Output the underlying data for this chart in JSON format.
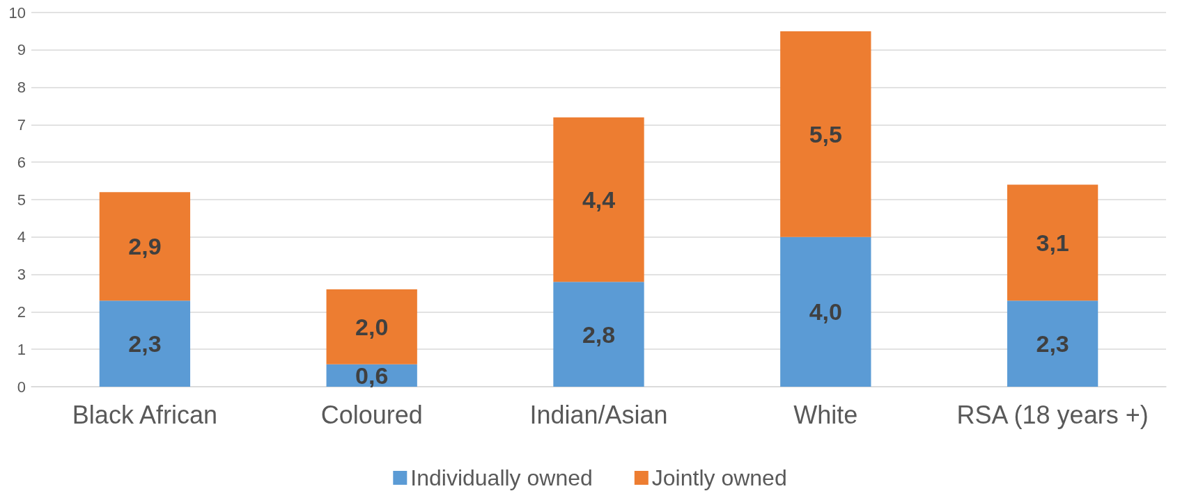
{
  "chart_data": {
    "type": "bar",
    "stacked": true,
    "categories": [
      "Black African",
      "Coloured",
      "Indian/Asian",
      "White",
      "RSA (18 years +)"
    ],
    "series": [
      {
        "name": "Individually owned",
        "color": "#5b9bd5",
        "values": [
          2.3,
          0.6,
          2.8,
          4.0,
          2.3
        ],
        "value_labels": [
          "2,3",
          "0,6",
          "2,8",
          "4,0",
          "2,3"
        ]
      },
      {
        "name": "Jointly owned",
        "color": "#ed7d31",
        "values": [
          2.9,
          2.0,
          4.4,
          5.5,
          3.1
        ],
        "value_labels": [
          "2,9",
          "2,0",
          "4,4",
          "5,5",
          "3,1"
        ]
      }
    ],
    "ylim": [
      0,
      10
    ],
    "yticks": [
      0,
      1,
      2,
      3,
      4,
      5,
      6,
      7,
      8,
      9,
      10
    ],
    "grid": "y",
    "legend": "bottom"
  }
}
